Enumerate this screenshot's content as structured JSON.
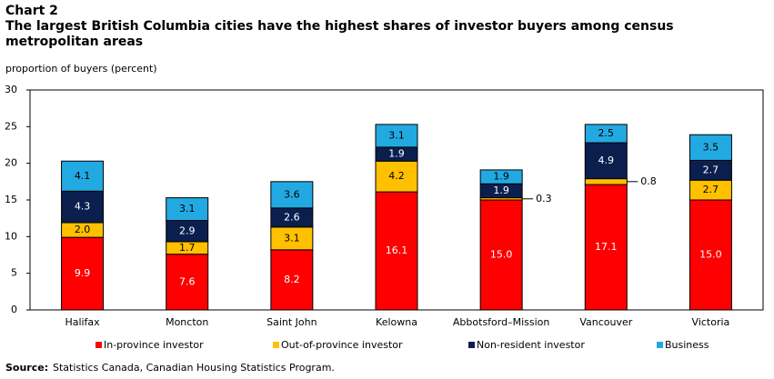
{
  "chart_data": {
    "type": "stacked_bar",
    "chart_number": "Chart 2",
    "title": "The largest British Columbia cities have the highest shares of investor buyers among census metropolitan areas",
    "y_label": "proportion of buyers (percent)",
    "categories": [
      "Halifax",
      "Moncton",
      "Saint John",
      "Kelowna",
      "Abbotsford–Mission",
      "Vancouver",
      "Victoria"
    ],
    "series": [
      {
        "name": "In-province investor",
        "color": "#ff0000",
        "label_color": "#ffffff",
        "values": [
          9.9,
          7.6,
          8.2,
          16.1,
          15.0,
          17.1,
          15.0
        ],
        "value_labels": [
          "9.9",
          "7.6",
          "8.2",
          "16.1",
          "15.0",
          "17.1",
          "15.0"
        ]
      },
      {
        "name": "Out-of-province investor",
        "color": "#ffc000",
        "label_color": "#000000",
        "values": [
          2.0,
          1.7,
          3.1,
          4.2,
          0.3,
          0.8,
          2.7
        ],
        "value_labels": [
          "2.0",
          "1.7",
          "3.1",
          "4.2",
          "0.3",
          "0.8",
          "2.7"
        ]
      },
      {
        "name": "Non-resident investor",
        "color": "#0b1f4f",
        "label_color": "#ffffff",
        "values": [
          4.3,
          2.9,
          2.6,
          1.9,
          1.9,
          4.9,
          2.7
        ],
        "value_labels": [
          "4.3",
          "2.9",
          "2.6",
          "1.9",
          "1.9",
          "4.9",
          "2.7"
        ]
      },
      {
        "name": "Business",
        "color": "#23a9e1",
        "label_color": "#000000",
        "values": [
          4.1,
          3.1,
          3.6,
          3.1,
          1.9,
          2.5,
          3.5
        ],
        "value_labels": [
          "4.1",
          "3.1",
          "3.6",
          "3.1",
          "1.9",
          "2.5",
          "3.5"
        ]
      }
    ],
    "ylim": [
      0,
      30
    ],
    "yticks": [
      0,
      5,
      10,
      15,
      20,
      25,
      30
    ],
    "grid": false,
    "legend": "bottom",
    "source": {
      "label": "Source:",
      "text": "Statistics Canada, Canadian Housing Statistics Program."
    }
  }
}
